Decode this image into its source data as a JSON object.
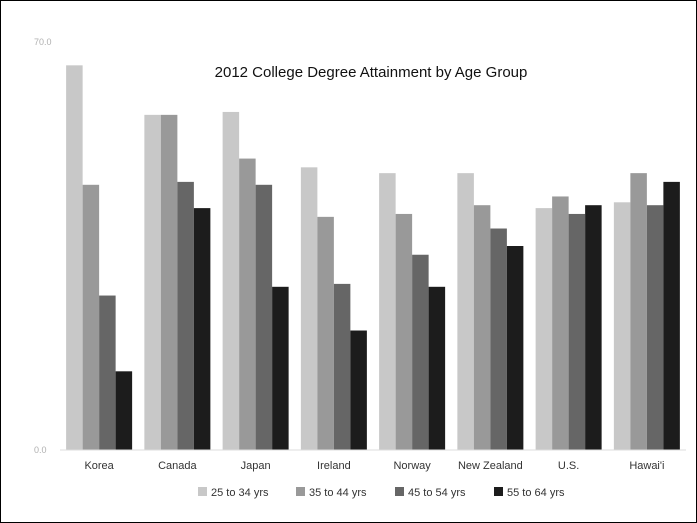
{
  "chart_data": {
    "type": "bar",
    "title": "2012 College Degree Attainment by Age Group",
    "xlabel": "",
    "ylabel": "",
    "ylim": [
      0,
      70
    ],
    "yticks": [
      "0.0",
      "70.0"
    ],
    "grid": false,
    "legend_position": "bottom",
    "categories": [
      "Korea",
      "Canada",
      "Japan",
      "Ireland",
      "Norway",
      "New Zealand",
      "U.S.",
      "Hawai'i"
    ],
    "series": [
      {
        "name": "25 to 34 yrs",
        "color": "#c8c8c8",
        "values": [
          66.0,
          57.5,
          58.0,
          48.5,
          47.5,
          47.5,
          41.5,
          42.5
        ]
      },
      {
        "name": "35 to 44 yrs",
        "color": "#999999",
        "values": [
          45.5,
          57.5,
          50.0,
          40.0,
          40.5,
          42.0,
          43.5,
          47.5
        ]
      },
      {
        "name": "45 to 54 yrs",
        "color": "#666666",
        "values": [
          26.5,
          46.0,
          45.5,
          28.5,
          33.5,
          38.0,
          40.5,
          42.0
        ]
      },
      {
        "name": "55 to 64 yrs",
        "color": "#1c1c1c",
        "values": [
          13.5,
          41.5,
          28.0,
          20.5,
          28.0,
          35.0,
          42.0,
          46.0
        ]
      }
    ]
  }
}
